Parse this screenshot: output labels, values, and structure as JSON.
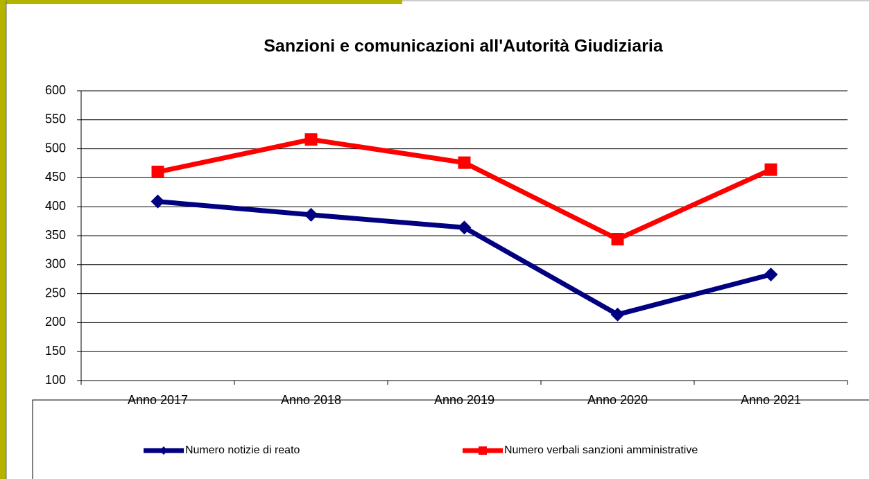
{
  "chart_data": {
    "type": "line",
    "title": "Sanzioni e comunicazioni all'Autorità Giudiziaria",
    "categories": [
      "Anno 2017",
      "Anno 2018",
      "Anno 2019",
      "Anno 2020",
      "Anno 2021"
    ],
    "series": [
      {
        "name": "Numero notizie di reato",
        "color": "#000080",
        "marker": "diamond",
        "values": [
          409,
          386,
          364,
          214,
          283
        ]
      },
      {
        "name": "Numero verbali sanzioni amministrative",
        "color": "#ff0000",
        "marker": "square",
        "values": [
          460,
          516,
          476,
          344,
          464
        ]
      }
    ],
    "ylim": [
      100,
      600
    ],
    "yticks": [
      100,
      150,
      200,
      250,
      300,
      350,
      400,
      450,
      500,
      550,
      600
    ],
    "grid": true,
    "legend": "bottom"
  }
}
